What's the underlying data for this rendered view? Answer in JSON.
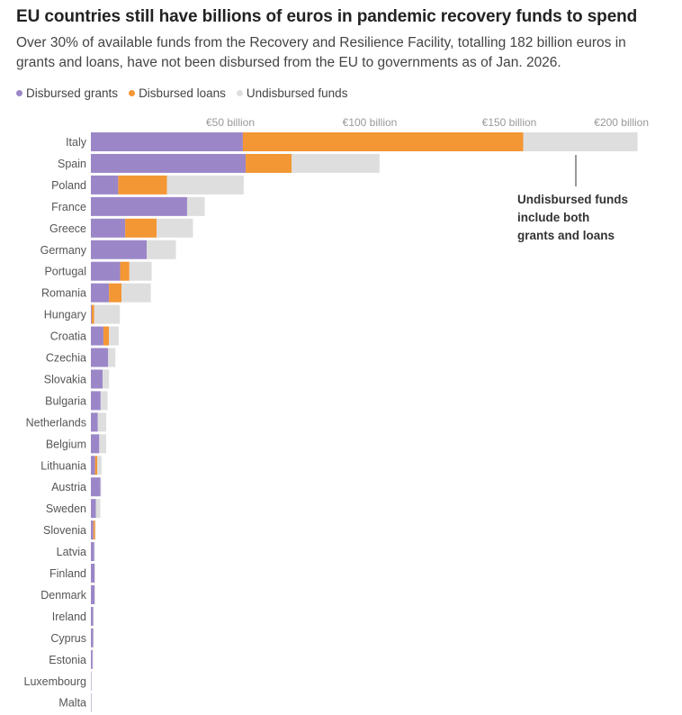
{
  "title": "EU countries still have billions of euros in pandemic recovery funds to spend",
  "subtitle": "Over 30% of available funds from the Recovery and Resilience Facility, totalling 182 billion euros in grants and loans, have not been disbursed from the EU to governments as of Jan. 2026.",
  "legend": [
    {
      "label": "Disbursed grants",
      "color": "#9b87c8"
    },
    {
      "label": "Disbursed loans",
      "color": "#f39634"
    },
    {
      "label": "Undisbursed funds",
      "color": "#dedede"
    }
  ],
  "note": {
    "line1": "Undisbursed funds",
    "line2": "include both",
    "line3": "grants and loans"
  },
  "chart_data": {
    "type": "bar",
    "orientation": "horizontal",
    "stacked": true,
    "title": "EU countries still have billions of euros in pandemic recovery funds to spend",
    "xlim": [
      0,
      200
    ],
    "xticks": [
      50,
      100,
      150,
      200
    ],
    "tick_labels": [
      "€50 billion",
      "€100 billion",
      "€150 billion",
      "€200 billion"
    ],
    "categories": [
      "Italy",
      "Spain",
      "Poland",
      "France",
      "Greece",
      "Germany",
      "Portugal",
      "Romania",
      "Hungary",
      "Croatia",
      "Czechia",
      "Slovakia",
      "Bulgaria",
      "Netherlands",
      "Belgium",
      "Lithuania",
      "Austria",
      "Sweden",
      "Slovenia",
      "Latvia",
      "Finland",
      "Denmark",
      "Ireland",
      "Cyprus",
      "Estonia",
      "Luxembourg",
      "Malta"
    ],
    "series": [
      {
        "name": "Disbursed grants",
        "color": "#9b87c8",
        "values": [
          54.5,
          55.5,
          9.8,
          34.5,
          12.3,
          20.0,
          10.5,
          6.5,
          0.3,
          4.5,
          6.2,
          4.2,
          3.5,
          2.5,
          3.0,
          1.5,
          3.4,
          1.8,
          0.9,
          1.2,
          1.3,
          1.3,
          0.8,
          0.8,
          0.6,
          0.1,
          0.1
        ]
      },
      {
        "name": "Disbursed loans",
        "color": "#f39634",
        "values": [
          100.5,
          16.5,
          17.5,
          0,
          11.3,
          0,
          3.3,
          4.5,
          0.9,
          2.0,
          0,
          0,
          0,
          0,
          0,
          0.8,
          0,
          0,
          0.6,
          0,
          0,
          0,
          0,
          0,
          0,
          0,
          0
        ]
      },
      {
        "name": "Undisbursed funds",
        "color": "#dedede",
        "values": [
          41.0,
          31.5,
          27.5,
          6.3,
          13.0,
          10.5,
          8.0,
          10.5,
          9.2,
          3.5,
          2.6,
          2.3,
          2.5,
          3.0,
          2.5,
          1.5,
          0.3,
          1.6,
          0.2,
          0.1,
          0.1,
          0.1,
          0.1,
          0.1,
          0.2,
          0.1,
          0.1
        ]
      }
    ]
  }
}
